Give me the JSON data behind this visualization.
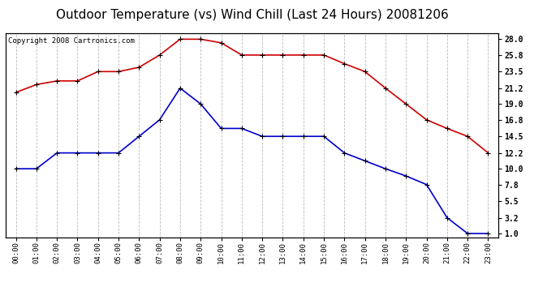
{
  "title": "Outdoor Temperature (vs) Wind Chill (Last 24 Hours) 20081206",
  "copyright": "Copyright 2008 Cartronics.com",
  "hours": [
    "00:00",
    "01:00",
    "02:00",
    "03:00",
    "04:00",
    "05:00",
    "06:00",
    "07:00",
    "08:00",
    "09:00",
    "10:00",
    "11:00",
    "12:00",
    "13:00",
    "14:00",
    "15:00",
    "16:00",
    "17:00",
    "18:00",
    "19:00",
    "20:00",
    "21:00",
    "22:00",
    "23:00"
  ],
  "red_temp": [
    20.6,
    21.7,
    22.2,
    22.2,
    23.5,
    23.5,
    24.1,
    25.8,
    28.0,
    28.0,
    27.5,
    25.8,
    25.8,
    25.8,
    25.8,
    25.8,
    24.6,
    23.5,
    21.2,
    19.0,
    16.8,
    15.6,
    14.5,
    12.2
  ],
  "blue_wc": [
    10.0,
    10.0,
    12.2,
    12.2,
    12.2,
    12.2,
    14.5,
    16.8,
    21.2,
    19.0,
    15.6,
    15.6,
    14.5,
    14.5,
    14.5,
    14.5,
    12.2,
    11.1,
    10.0,
    9.0,
    7.8,
    3.2,
    1.0,
    1.0
  ],
  "yticks": [
    1.0,
    3.2,
    5.5,
    7.8,
    10.0,
    12.2,
    14.5,
    16.8,
    19.0,
    21.2,
    23.5,
    25.8,
    28.0
  ],
  "ymin": 0.5,
  "ymax": 28.8,
  "red_color": "#cc0000",
  "blue_color": "#0000cc",
  "grid_color": "#bbbbbb",
  "bg_color": "#ffffff",
  "title_fontsize": 11,
  "copyright_fontsize": 6.5
}
